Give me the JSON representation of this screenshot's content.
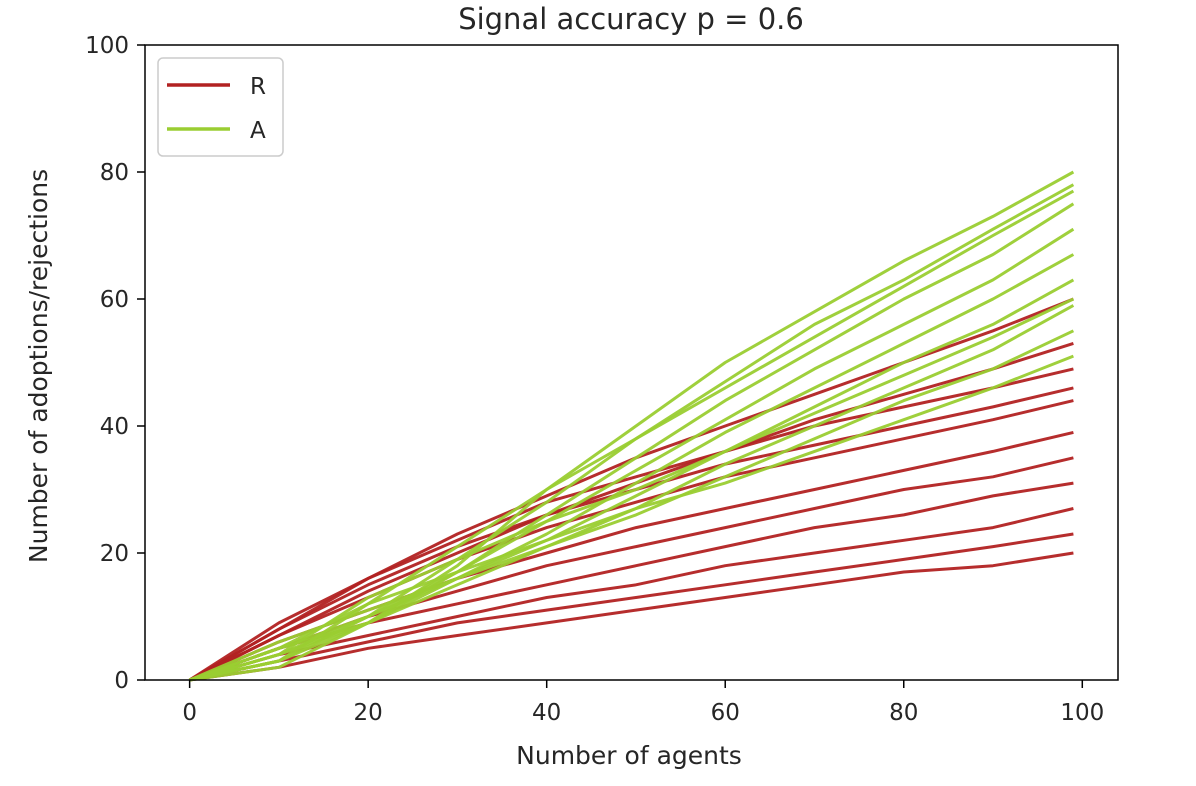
{
  "chart_data": {
    "type": "line",
    "title": "Signal accuracy p =  0.6",
    "xlabel": "Number of agents",
    "ylabel": "Number of adoptions/rejections",
    "xlim": [
      -5,
      104
    ],
    "ylim": [
      0,
      100
    ],
    "xticks": [
      "0",
      "20",
      "40",
      "60",
      "80",
      "100"
    ],
    "yticks": [
      "0",
      "20",
      "40",
      "60",
      "80",
      "100"
    ],
    "legend_position": "upper-left",
    "grid": false,
    "series": [
      {
        "name": "R",
        "color": "#b22222",
        "description_of_band": "many simulation runs",
        "runs": [
          {
            "x": [
              0,
              10,
              20,
              30,
              40,
              50,
              60,
              70,
              80,
              90,
              99
            ],
            "values": [
              0,
              9,
              16,
              22,
              28,
              32,
              36,
              40,
              43,
              46,
              49
            ]
          },
          {
            "x": [
              0,
              10,
              20,
              30,
              40,
              50,
              60,
              70,
              80,
              90,
              99
            ],
            "values": [
              0,
              8,
              15,
              21,
              26,
              30,
              34,
              37,
              40,
              43,
              46
            ]
          },
          {
            "x": [
              0,
              10,
              20,
              30,
              40,
              50,
              60,
              70,
              80,
              90,
              99
            ],
            "values": [
              0,
              7,
              13,
              19,
              24,
              28,
              32,
              35,
              38,
              41,
              44
            ]
          },
          {
            "x": [
              0,
              10,
              20,
              30,
              40,
              50,
              60,
              70,
              80,
              90,
              99
            ],
            "values": [
              0,
              6,
              11,
              16,
              20,
              24,
              27,
              30,
              33,
              36,
              39
            ]
          },
          {
            "x": [
              0,
              10,
              20,
              30,
              40,
              50,
              60,
              70,
              80,
              90,
              99
            ],
            "values": [
              0,
              5,
              10,
              14,
              18,
              21,
              24,
              27,
              30,
              32,
              35
            ]
          },
          {
            "x": [
              0,
              10,
              20,
              30,
              40,
              50,
              60,
              70,
              80,
              90,
              99
            ],
            "values": [
              0,
              5,
              9,
              12,
              15,
              18,
              21,
              24,
              26,
              29,
              31
            ]
          },
          {
            "x": [
              0,
              10,
              20,
              30,
              40,
              50,
              60,
              70,
              80,
              90,
              99
            ],
            "values": [
              0,
              4,
              7,
              10,
              13,
              15,
              18,
              20,
              22,
              24,
              27
            ]
          },
          {
            "x": [
              0,
              10,
              20,
              30,
              40,
              50,
              60,
              70,
              80,
              90,
              99
            ],
            "values": [
              0,
              3,
              6,
              9,
              11,
              13,
              15,
              17,
              19,
              21,
              23
            ]
          },
          {
            "x": [
              0,
              10,
              20,
              30,
              40,
              50,
              60,
              70,
              80,
              90,
              99
            ],
            "values": [
              0,
              2,
              5,
              7,
              9,
              11,
              13,
              15,
              17,
              18,
              20
            ]
          },
          {
            "x": [
              0,
              10,
              20,
              30,
              40,
              50,
              60,
              70,
              80,
              90,
              99
            ],
            "values": [
              0,
              7,
              14,
              20,
              26,
              31,
              36,
              41,
              45,
              49,
              53
            ]
          },
          {
            "x": [
              0,
              10,
              20,
              30,
              40,
              50,
              60,
              70,
              80,
              90,
              99
            ],
            "values": [
              0,
              8,
              16,
              23,
              29,
              35,
              40,
              45,
              50,
              55,
              60
            ]
          }
        ]
      },
      {
        "name": "A",
        "color": "#9acd32",
        "description_of_band": "many simulation runs",
        "runs": [
          {
            "x": [
              0,
              10,
              20,
              30,
              40,
              50,
              60,
              70,
              80,
              90,
              99
            ],
            "values": [
              0,
              2,
              9,
              18,
              30,
              40,
              50,
              58,
              66,
              73,
              80
            ]
          },
          {
            "x": [
              0,
              10,
              20,
              30,
              40,
              50,
              60,
              70,
              80,
              90,
              99
            ],
            "values": [
              0,
              3,
              10,
              19,
              28,
              38,
              47,
              56,
              63,
              71,
              78
            ]
          },
          {
            "x": [
              0,
              10,
              20,
              30,
              40,
              50,
              60,
              70,
              80,
              90,
              99
            ],
            "values": [
              0,
              3,
              9,
              17,
              26,
              35,
              44,
              52,
              60,
              67,
              75
            ]
          },
          {
            "x": [
              0,
              10,
              20,
              30,
              40,
              50,
              60,
              70,
              80,
              90,
              99
            ],
            "values": [
              0,
              4,
              10,
              17,
              25,
              33,
              41,
              49,
              56,
              63,
              71
            ]
          },
          {
            "x": [
              0,
              10,
              20,
              30,
              40,
              50,
              60,
              70,
              80,
              90,
              99
            ],
            "values": [
              0,
              4,
              9,
              16,
              23,
              31,
              39,
              46,
              53,
              60,
              67
            ]
          },
          {
            "x": [
              0,
              10,
              20,
              30,
              40,
              50,
              60,
              70,
              80,
              90,
              99
            ],
            "values": [
              0,
              5,
              10,
              16,
              22,
              29,
              36,
              43,
              50,
              56,
              63
            ]
          },
          {
            "x": [
              0,
              10,
              20,
              30,
              40,
              50,
              60,
              70,
              80,
              90,
              99
            ],
            "values": [
              0,
              5,
              9,
              15,
              21,
              27,
              34,
              40,
              46,
              52,
              59
            ]
          },
          {
            "x": [
              0,
              10,
              20,
              30,
              40,
              50,
              60,
              70,
              80,
              90,
              99
            ],
            "values": [
              0,
              6,
              11,
              16,
              21,
              26,
              32,
              38,
              44,
              49,
              55
            ]
          },
          {
            "x": [
              0,
              10,
              20,
              30,
              40,
              50,
              60,
              70,
              80,
              90,
              99
            ],
            "values": [
              0,
              5,
              12,
              17,
              22,
              27,
              31,
              36,
              41,
              46,
              51
            ]
          },
          {
            "x": [
              0,
              10,
              20,
              30,
              40,
              50,
              60,
              70,
              80,
              90,
              99
            ],
            "values": [
              0,
              4,
              13,
              19,
              25,
              30,
              36,
              42,
              48,
              54,
              60
            ]
          },
          {
            "x": [
              0,
              10,
              20,
              30,
              40,
              50,
              60,
              70,
              80,
              90,
              99
            ],
            "values": [
              0,
              3,
              12,
              21,
              30,
              38,
              46,
              54,
              62,
              70,
              77
            ]
          }
        ]
      }
    ]
  }
}
